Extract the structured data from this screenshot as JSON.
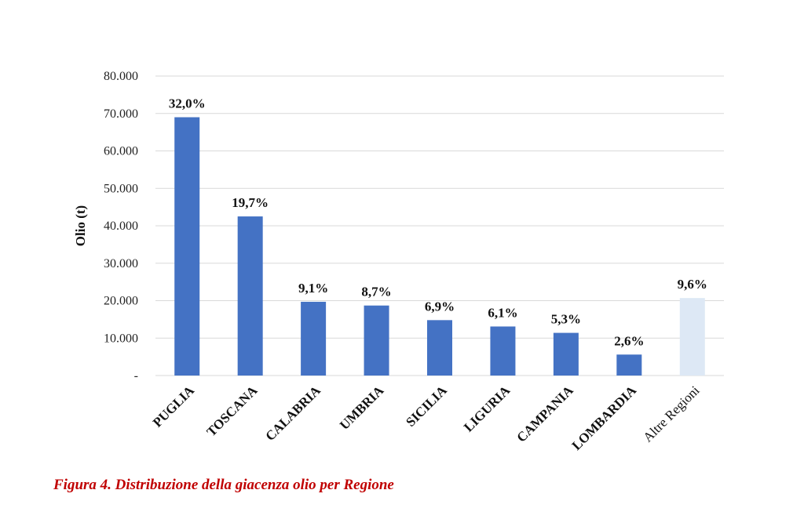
{
  "caption": "Figura 4. Distribuzione della giacenza olio per Regione",
  "chart_data": {
    "type": "bar",
    "ylabel": "Olio (t)",
    "ylim": [
      0,
      80000
    ],
    "yticks": [
      {
        "value": 0,
        "label": "-"
      },
      {
        "value": 10000,
        "label": "10.000"
      },
      {
        "value": 20000,
        "label": "20.000"
      },
      {
        "value": 30000,
        "label": "30.000"
      },
      {
        "value": 40000,
        "label": "40.000"
      },
      {
        "value": 50000,
        "label": "50.000"
      },
      {
        "value": 60000,
        "label": "60.000"
      },
      {
        "value": 70000,
        "label": "70.000"
      },
      {
        "value": 80000,
        "label": "80.000"
      }
    ],
    "grid": true,
    "categories": [
      "PUGLIA",
      "TOSCANA",
      "CALABRIA",
      "UMBRIA",
      "SICILIA",
      "LIGURIA",
      "CAMPANIA",
      "LOMBARDIA",
      "Altre Regioni"
    ],
    "values": [
      69000,
      42500,
      19700,
      18700,
      14800,
      13100,
      11400,
      5600,
      20700
    ],
    "data_labels": [
      "32,0%",
      "19,7%",
      "9,1%",
      "8,7%",
      "6,9%",
      "6,1%",
      "5,3%",
      "2,6%",
      "9,6%"
    ],
    "colors": [
      "#4472c4",
      "#4472c4",
      "#4472c4",
      "#4472c4",
      "#4472c4",
      "#4472c4",
      "#4472c4",
      "#4472c4",
      "#dde8f5"
    ],
    "grid_color": "#d9d9d9"
  }
}
